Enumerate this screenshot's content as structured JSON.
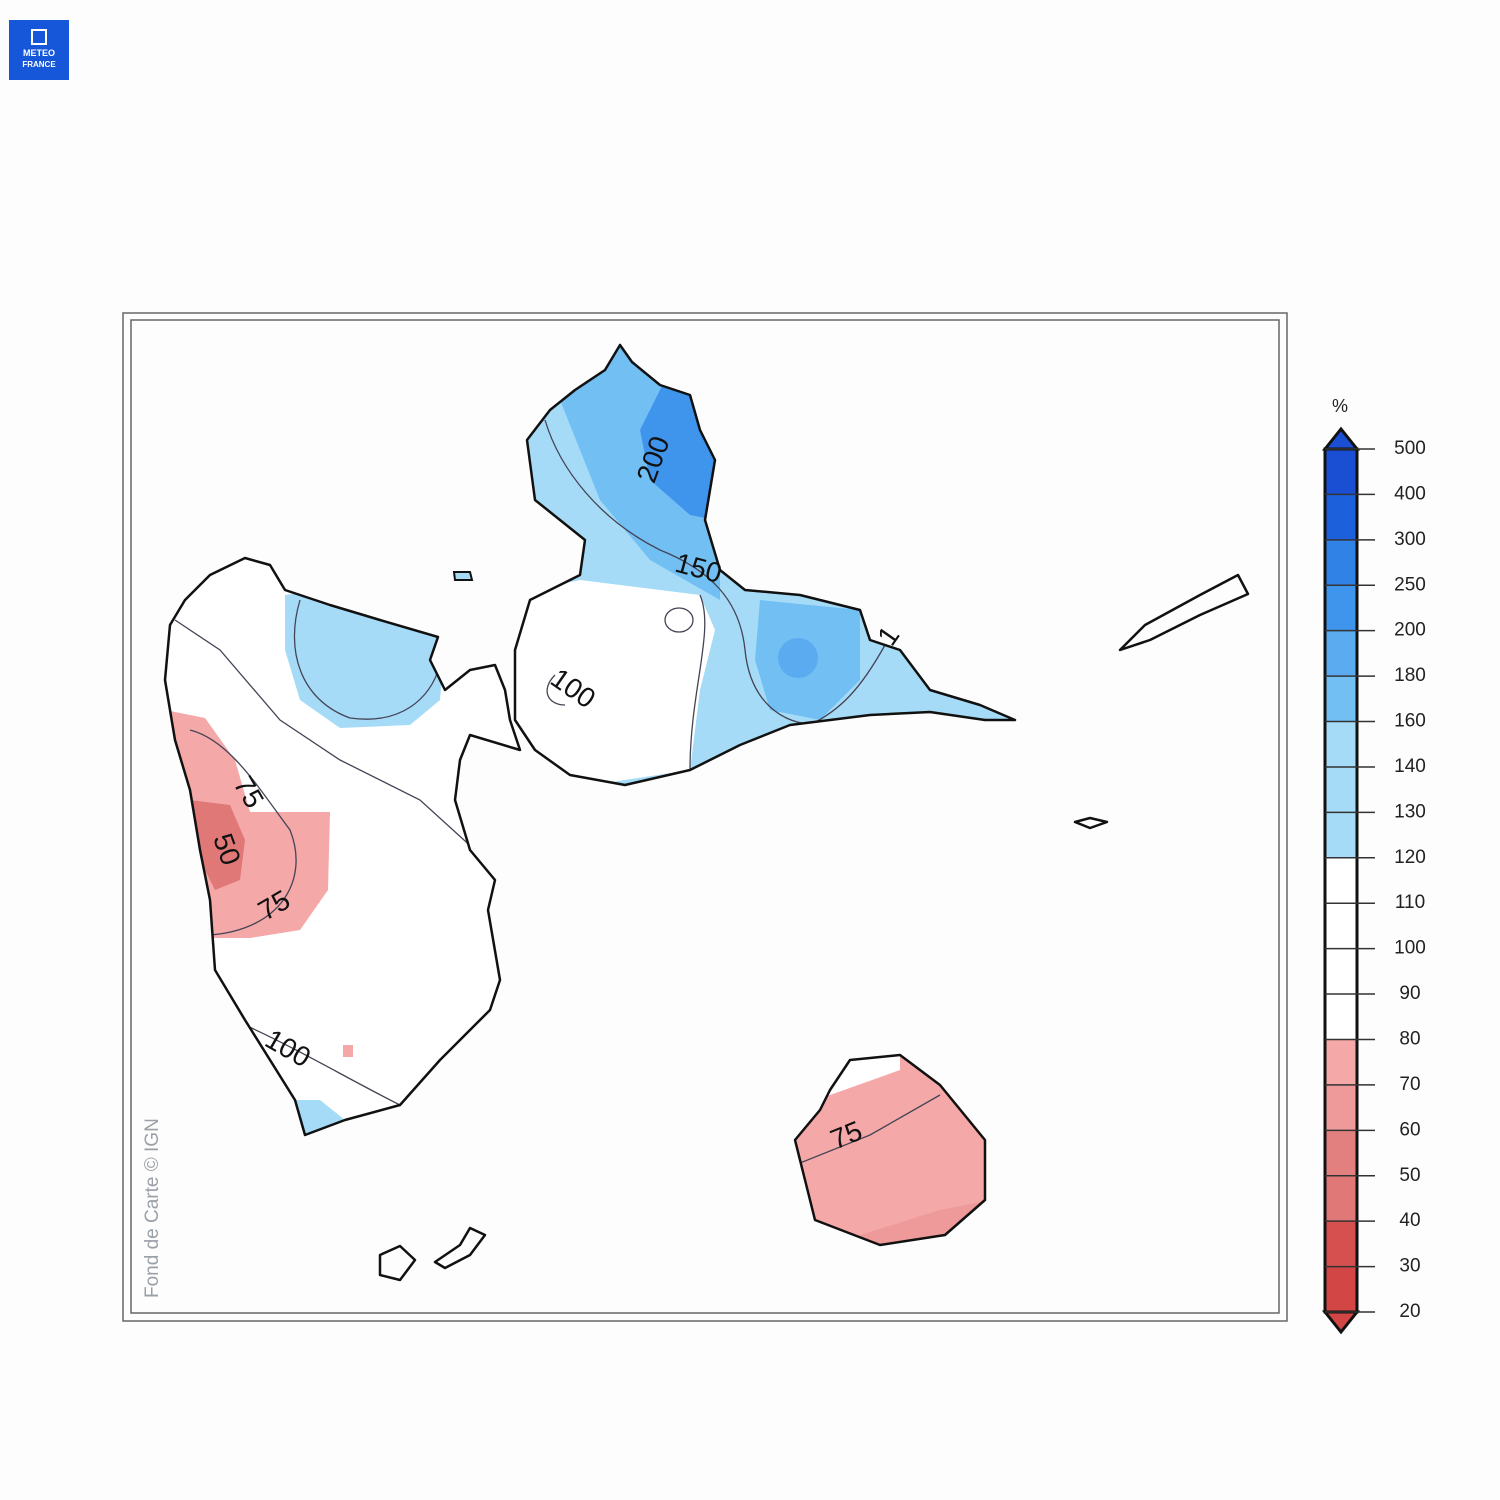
{
  "logo": {
    "line1": "METEO",
    "line2": "FRANCE"
  },
  "map": {
    "contour_labels": [
      "200",
      "150",
      "100",
      "1",
      "75",
      "50",
      "75",
      "100",
      "75"
    ],
    "credit": "Fond de Carte © IGN"
  },
  "colorbar": {
    "unit": "%",
    "ticks": [
      20,
      30,
      40,
      50,
      60,
      70,
      80,
      90,
      100,
      110,
      120,
      130,
      140,
      160,
      180,
      200,
      250,
      300,
      400,
      500
    ],
    "colors": [
      "#d24646",
      "#d65050",
      "#e07878",
      "#e28080",
      "#ee9a9a",
      "#f5a8a8",
      "#ffffff",
      "#ffffff",
      "#ffffff",
      "#ffffff",
      "#a6dbf7",
      "#a6dbf7",
      "#a6dbf7",
      "#72bff4",
      "#5aabf0",
      "#3f94ec",
      "#3082e6",
      "#1d60dc",
      "#1a4fd4"
    ]
  }
}
